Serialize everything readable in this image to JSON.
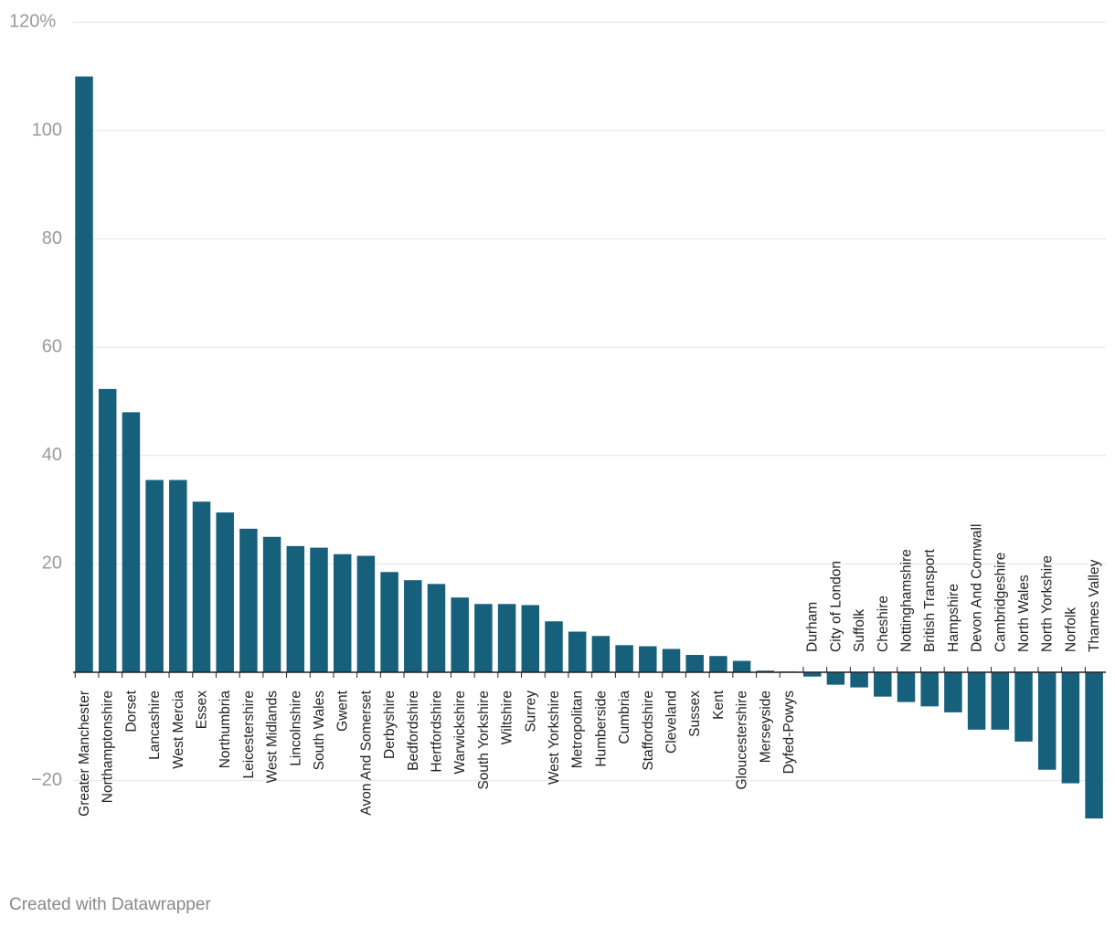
{
  "chart_data": {
    "type": "bar",
    "ylim": [
      -30,
      120
    ],
    "yticks": [
      -20,
      20,
      40,
      60,
      80,
      100,
      120
    ],
    "ytick_labels": [
      "−20",
      "20",
      "40",
      "60",
      "80",
      "100",
      "120%"
    ],
    "grid": true,
    "categories": [
      "Greater Manchester",
      "Northamptonshire",
      "Dorset",
      "Lancashire",
      "West Mercia",
      "Essex",
      "Northumbria",
      "Leicestershire",
      "West Midlands",
      "Lincolnshire",
      "South Wales",
      "Gwent",
      "Avon And Somerset",
      "Derbyshire",
      "Bedfordshire",
      "Hertfordshire",
      "Warwickshire",
      "South Yorkshire",
      "Wiltshire",
      "Surrey",
      "West Yorkshire",
      "Metropolitan",
      "Humberside",
      "Cumbria",
      "Staffordshire",
      "Cleveland",
      "Sussex",
      "Kent",
      "Gloucestershire",
      "Merseyside",
      "Dyfed-Powys",
      "Durham",
      "City of London",
      "Suffolk",
      "Cheshire",
      "Nottinghamshire",
      "British Transport",
      "Hampshire",
      "Devon And Cornwall",
      "Cambridgeshire",
      "North Wales",
      "North Yorkshire",
      "Norfolk",
      "Thames Valley"
    ],
    "values": [
      110,
      52.3,
      48,
      35.5,
      35.5,
      31.5,
      29.5,
      26.5,
      25,
      23.3,
      23,
      21.8,
      21.5,
      18.5,
      17,
      16.3,
      13.8,
      12.6,
      12.6,
      12.4,
      9.4,
      7.5,
      6.7,
      5,
      4.8,
      4.3,
      3.2,
      3,
      2.1,
      0.3,
      0.1,
      -0.8,
      -2.3,
      -2.8,
      -4.5,
      -5.5,
      -6.3,
      -7.4,
      -10.6,
      -10.6,
      -12.8,
      -18,
      -20.5,
      -27
    ],
    "bar_color": "#17607b"
  },
  "footer": "Created with Datawrapper",
  "colors": {
    "grid": "#e4e4e4",
    "axis": "#222222",
    "tick_text": "#9a9a9a",
    "footer_text": "#888888"
  }
}
